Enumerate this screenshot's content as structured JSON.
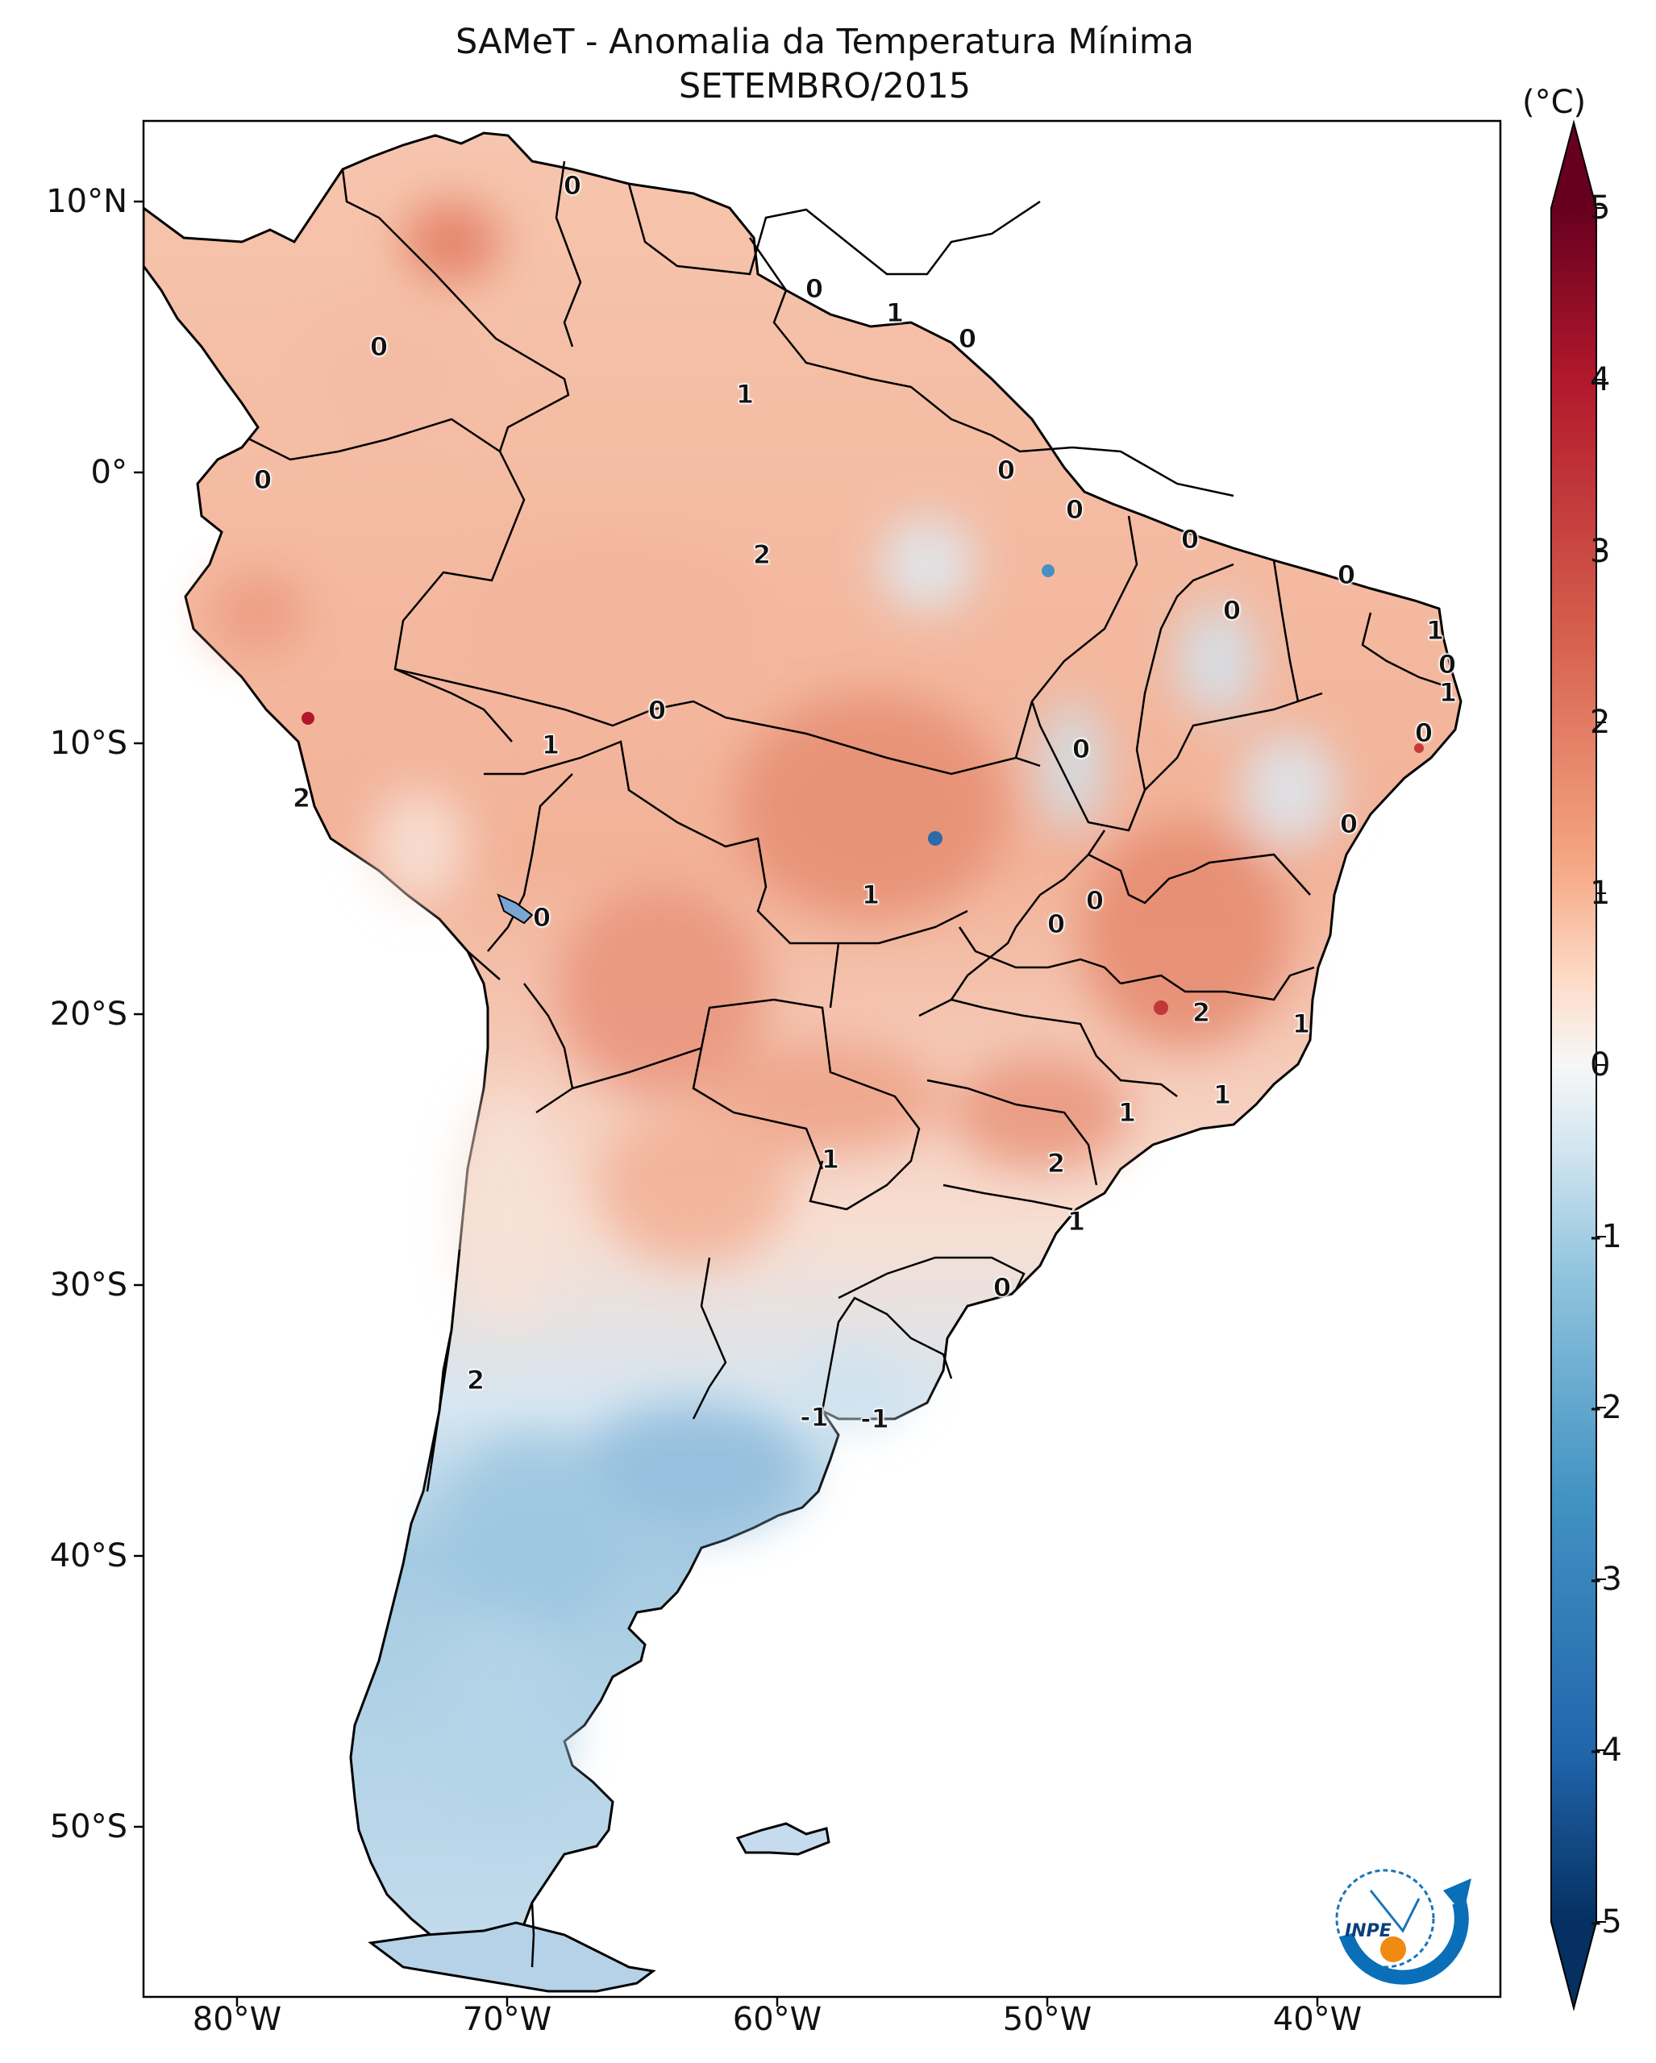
{
  "title_line1": "SAMeT - Anomalia da Temperatura Mínima",
  "title_line2": "SETEMBRO/2015",
  "colorbar": {
    "unit": "(°C)",
    "ticks": [
      "5",
      "4",
      "3",
      "2",
      "1",
      "0",
      "-1",
      "-2",
      "-3",
      "-4",
      "-5"
    ],
    "range": [
      -5,
      5
    ],
    "colors": {
      "max": "#67001f",
      "mid": "#f7f7f7",
      "min": "#053061"
    }
  },
  "axes": {
    "lat_labels": [
      "10°N",
      "0°",
      "10°S",
      "20°S",
      "30°S",
      "40°S",
      "50°S"
    ],
    "lon_labels": [
      "80°W",
      "70°W",
      "60°W",
      "50°W",
      "40°W"
    ]
  },
  "logo_text": "INPE",
  "contour_labels": [
    "0",
    "0",
    "1",
    "0",
    "1",
    "0",
    "2",
    "0",
    "0",
    "0",
    "0",
    "1",
    "0",
    "0",
    "0",
    "1",
    "0",
    "1",
    "0",
    "2",
    "0",
    "0",
    "1",
    "0",
    "0",
    "0",
    "2",
    "1",
    "1",
    "1",
    "1",
    "2",
    "1",
    "0",
    "2",
    "-1",
    "-1"
  ]
}
